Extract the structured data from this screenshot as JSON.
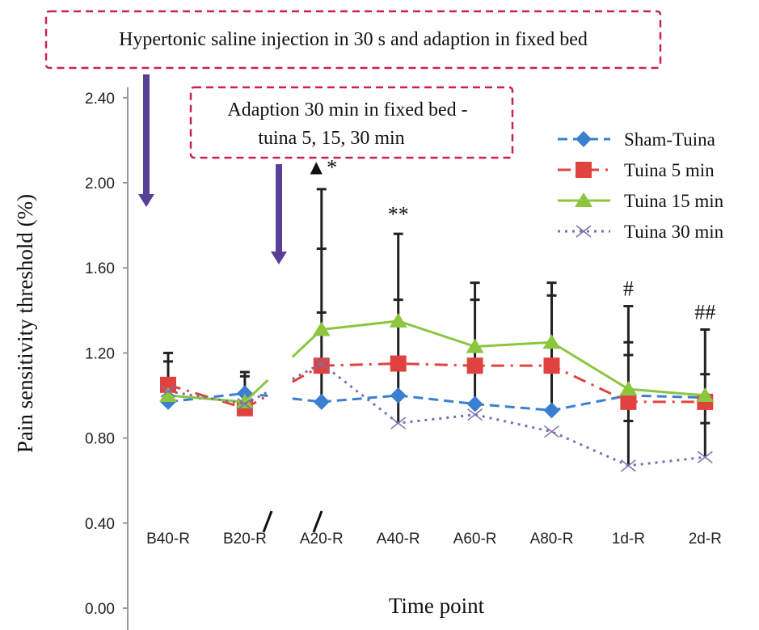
{
  "chart_data": {
    "type": "line",
    "title": "",
    "xlabel": "Time point",
    "ylabel": "Pain sensitivity threshold (%)",
    "ylim": [
      0,
      2.4
    ],
    "yticks": [
      "0.00",
      "0.40",
      "0.80",
      "1.20",
      "1.60",
      "2.00",
      "2.40"
    ],
    "categories": [
      "B40-R",
      "B20-R",
      "A20-R",
      "A40-R",
      "A60-R",
      "A80-R",
      "1d-R",
      "2d-R"
    ],
    "axis_break_between": [
      "B20-R",
      "A20-R"
    ],
    "legend_position": "top-right",
    "series": [
      {
        "name": "Sham-Tuina",
        "color": "#3a7fd0",
        "marker": "diamond",
        "style": "dashed",
        "values": [
          0.97,
          1.01,
          0.97,
          1.0,
          0.96,
          0.93,
          1.0,
          0.99
        ]
      },
      {
        "name": "Tuina 5 min",
        "color": "#e0433f",
        "marker": "square",
        "style": "dashdot",
        "values": [
          1.05,
          0.94,
          1.14,
          1.15,
          1.14,
          1.14,
          0.97,
          0.97
        ]
      },
      {
        "name": "Tuina 15 min",
        "color": "#8cc63f",
        "marker": "triangle",
        "style": "solid",
        "values": [
          1.0,
          0.97,
          1.31,
          1.35,
          1.23,
          1.25,
          1.03,
          1.0
        ]
      },
      {
        "name": "Tuina 30 min",
        "color": "#7b6fa8",
        "marker": "x",
        "style": "dotted",
        "values": [
          1.02,
          0.96,
          1.15,
          0.87,
          0.91,
          0.83,
          0.67,
          0.71
        ]
      }
    ],
    "error_bars": [
      {
        "category": "B40-R",
        "low": 1.05,
        "caps": [
          1.16,
          1.2
        ]
      },
      {
        "category": "B20-R",
        "low": 0.97,
        "caps": [
          1.09,
          1.11
        ]
      },
      {
        "category": "A20-R",
        "low": 0.97,
        "caps": [
          1.39,
          1.69,
          1.97
        ]
      },
      {
        "category": "A40-R",
        "low": 0.87,
        "caps": [
          1.45,
          1.76
        ]
      },
      {
        "category": "A60-R",
        "low": 0.96,
        "caps": [
          1.45,
          1.53
        ]
      },
      {
        "category": "A80-R",
        "low": 0.93,
        "caps": [
          1.47,
          1.53
        ]
      },
      {
        "category": "1d-R",
        "low": 0.67,
        "caps": [
          1.19,
          1.25,
          1.42
        ],
        "lower_caps": [
          0.88
        ]
      },
      {
        "category": "2d-R",
        "low": 0.71,
        "caps": [
          1.1,
          1.31
        ],
        "lower_caps": [
          0.87
        ]
      }
    ],
    "annotations": [
      {
        "category": "A20-R",
        "text": "▲*",
        "value": 2.04
      },
      {
        "category": "A40-R",
        "text": "**",
        "value": 1.82
      },
      {
        "category": "1d-R",
        "text": "#",
        "value": 1.47
      },
      {
        "category": "2d-R",
        "text": "##",
        "value": 1.36
      }
    ],
    "callouts": [
      "Hypertonic saline injection in 30 s and adaption in fixed bed",
      "Adaption 30 min in fixed bed -",
      "tuina 5, 15, 30 min"
    ]
  }
}
